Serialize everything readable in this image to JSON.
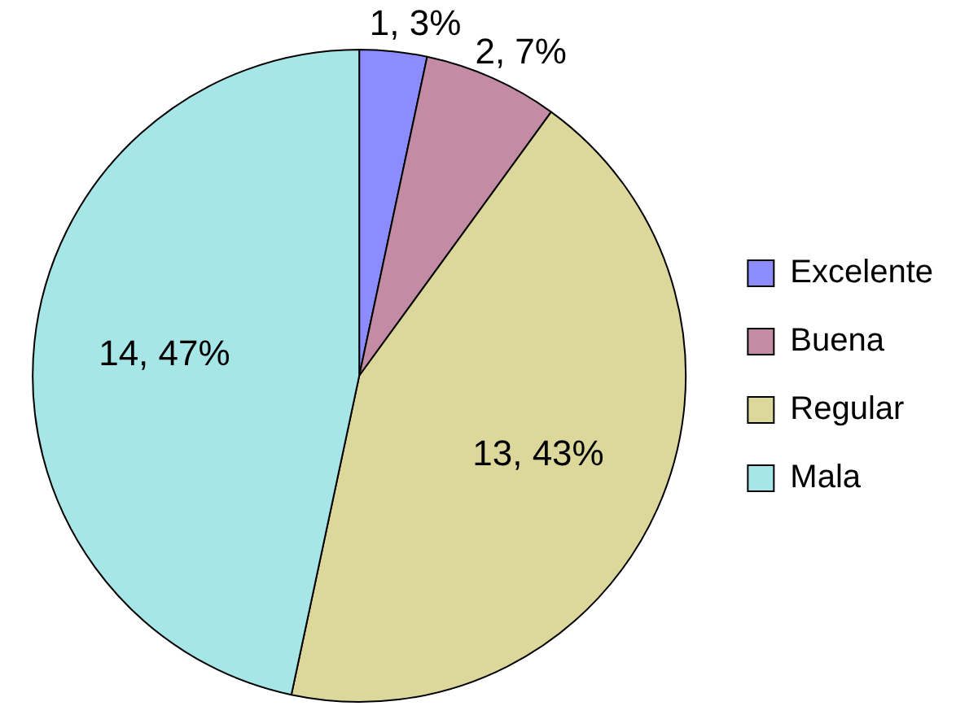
{
  "chart_data": {
    "type": "pie",
    "categories": [
      "Excelente",
      "Buena",
      "Regular",
      "Mala"
    ],
    "values": [
      1,
      2,
      13,
      14
    ],
    "colors": [
      "#8c8cff",
      "#c48ca4",
      "#dcd89c",
      "#a6e6e6"
    ],
    "value_labels": [
      "1, 3%",
      "2, 7%",
      "13, 43%",
      "14, 47%"
    ],
    "legend": "right"
  }
}
